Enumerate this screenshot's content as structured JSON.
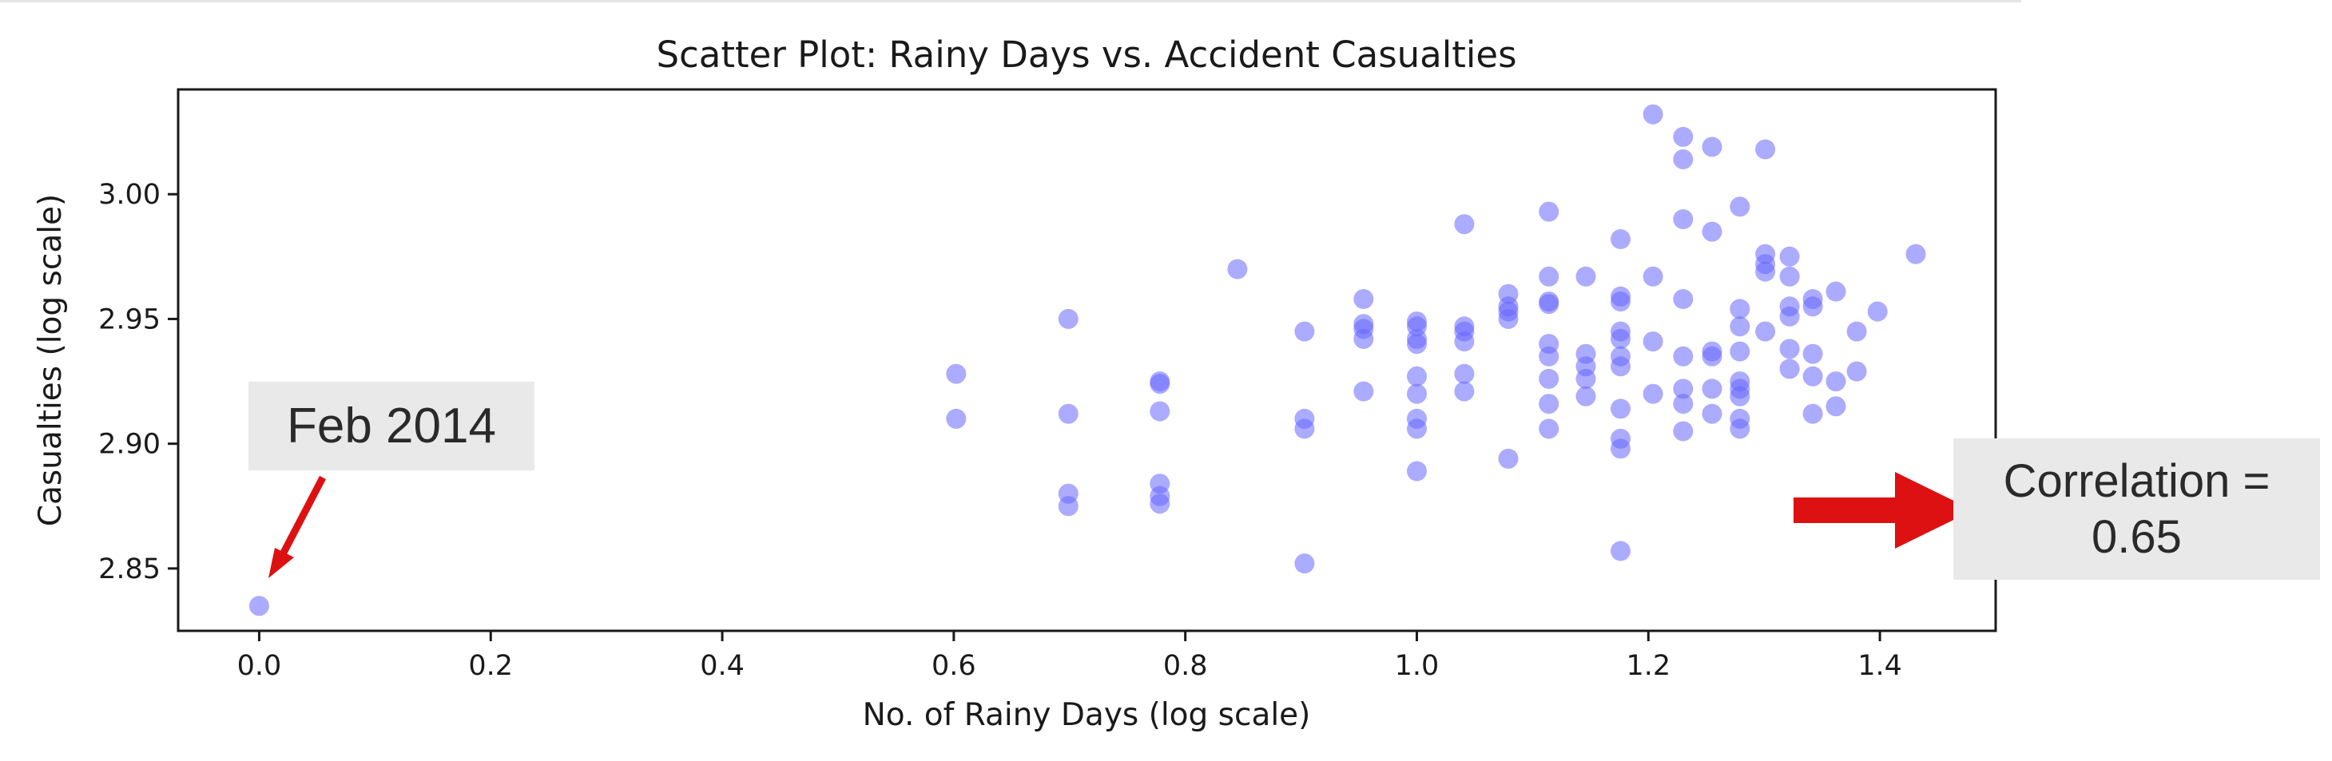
{
  "chart_data": {
    "type": "scatter",
    "title": "Scatter Plot: Rainy Days vs. Accident Casualties",
    "xlabel": "No. of Rainy Days (log scale)",
    "ylabel": "Casualties (log scale)",
    "xlim": [
      -0.07,
      1.5
    ],
    "ylim": [
      2.825,
      3.042
    ],
    "xticks": [
      0.0,
      0.2,
      0.4,
      0.6,
      0.8,
      1.0,
      1.2,
      1.4
    ],
    "xtick_labels": [
      "0.0",
      "0.2",
      "0.4",
      "0.6",
      "0.8",
      "1.0",
      "1.2",
      "1.4"
    ],
    "yticks": [
      2.85,
      2.9,
      2.95,
      3.0
    ],
    "ytick_labels": [
      "2.85",
      "2.90",
      "2.95",
      "3.00"
    ],
    "grid": false,
    "marker_color": "#6666ff",
    "points": [
      {
        "x": 0.0,
        "y": 2.835
      },
      {
        "x": 0.602,
        "y": 2.928
      },
      {
        "x": 0.602,
        "y": 2.91
      },
      {
        "x": 0.699,
        "y": 2.95
      },
      {
        "x": 0.699,
        "y": 2.912
      },
      {
        "x": 0.699,
        "y": 2.88
      },
      {
        "x": 0.699,
        "y": 2.875
      },
      {
        "x": 0.778,
        "y": 2.925
      },
      {
        "x": 0.778,
        "y": 2.924
      },
      {
        "x": 0.778,
        "y": 2.913
      },
      {
        "x": 0.778,
        "y": 2.884
      },
      {
        "x": 0.778,
        "y": 2.879
      },
      {
        "x": 0.778,
        "y": 2.876
      },
      {
        "x": 0.845,
        "y": 2.97
      },
      {
        "x": 0.903,
        "y": 2.945
      },
      {
        "x": 0.903,
        "y": 2.91
      },
      {
        "x": 0.903,
        "y": 2.906
      },
      {
        "x": 0.903,
        "y": 2.852
      },
      {
        "x": 0.954,
        "y": 2.958
      },
      {
        "x": 0.954,
        "y": 2.948
      },
      {
        "x": 0.954,
        "y": 2.946
      },
      {
        "x": 0.954,
        "y": 2.942
      },
      {
        "x": 0.954,
        "y": 2.921
      },
      {
        "x": 1.0,
        "y": 2.949
      },
      {
        "x": 1.0,
        "y": 2.947
      },
      {
        "x": 1.0,
        "y": 2.942
      },
      {
        "x": 1.0,
        "y": 2.94
      },
      {
        "x": 1.0,
        "y": 2.927
      },
      {
        "x": 1.0,
        "y": 2.92
      },
      {
        "x": 1.0,
        "y": 2.91
      },
      {
        "x": 1.0,
        "y": 2.906
      },
      {
        "x": 1.0,
        "y": 2.889
      },
      {
        "x": 1.041,
        "y": 2.988
      },
      {
        "x": 1.041,
        "y": 2.947
      },
      {
        "x": 1.041,
        "y": 2.945
      },
      {
        "x": 1.041,
        "y": 2.941
      },
      {
        "x": 1.041,
        "y": 2.928
      },
      {
        "x": 1.041,
        "y": 2.921
      },
      {
        "x": 1.079,
        "y": 2.96
      },
      {
        "x": 1.079,
        "y": 2.955
      },
      {
        "x": 1.079,
        "y": 2.953
      },
      {
        "x": 1.079,
        "y": 2.95
      },
      {
        "x": 1.079,
        "y": 2.894
      },
      {
        "x": 1.114,
        "y": 2.993
      },
      {
        "x": 1.114,
        "y": 2.967
      },
      {
        "x": 1.114,
        "y": 2.957
      },
      {
        "x": 1.114,
        "y": 2.956
      },
      {
        "x": 1.114,
        "y": 2.94
      },
      {
        "x": 1.114,
        "y": 2.935
      },
      {
        "x": 1.114,
        "y": 2.926
      },
      {
        "x": 1.114,
        "y": 2.916
      },
      {
        "x": 1.114,
        "y": 2.906
      },
      {
        "x": 1.146,
        "y": 2.967
      },
      {
        "x": 1.146,
        "y": 2.936
      },
      {
        "x": 1.146,
        "y": 2.931
      },
      {
        "x": 1.146,
        "y": 2.926
      },
      {
        "x": 1.146,
        "y": 2.919
      },
      {
        "x": 1.176,
        "y": 2.982
      },
      {
        "x": 1.176,
        "y": 2.959
      },
      {
        "x": 1.176,
        "y": 2.957
      },
      {
        "x": 1.176,
        "y": 2.945
      },
      {
        "x": 1.176,
        "y": 2.942
      },
      {
        "x": 1.176,
        "y": 2.935
      },
      {
        "x": 1.176,
        "y": 2.931
      },
      {
        "x": 1.176,
        "y": 2.914
      },
      {
        "x": 1.176,
        "y": 2.902
      },
      {
        "x": 1.176,
        "y": 2.898
      },
      {
        "x": 1.176,
        "y": 2.857
      },
      {
        "x": 1.204,
        "y": 3.032
      },
      {
        "x": 1.204,
        "y": 2.967
      },
      {
        "x": 1.204,
        "y": 2.941
      },
      {
        "x": 1.204,
        "y": 2.92
      },
      {
        "x": 1.23,
        "y": 3.023
      },
      {
        "x": 1.23,
        "y": 3.014
      },
      {
        "x": 1.23,
        "y": 2.99
      },
      {
        "x": 1.23,
        "y": 2.958
      },
      {
        "x": 1.23,
        "y": 2.935
      },
      {
        "x": 1.23,
        "y": 2.922
      },
      {
        "x": 1.23,
        "y": 2.916
      },
      {
        "x": 1.23,
        "y": 2.905
      },
      {
        "x": 1.255,
        "y": 3.019
      },
      {
        "x": 1.255,
        "y": 2.985
      },
      {
        "x": 1.255,
        "y": 2.937
      },
      {
        "x": 1.255,
        "y": 2.935
      },
      {
        "x": 1.255,
        "y": 2.922
      },
      {
        "x": 1.255,
        "y": 2.912
      },
      {
        "x": 1.279,
        "y": 2.995
      },
      {
        "x": 1.279,
        "y": 2.954
      },
      {
        "x": 1.279,
        "y": 2.947
      },
      {
        "x": 1.279,
        "y": 2.937
      },
      {
        "x": 1.279,
        "y": 2.925
      },
      {
        "x": 1.279,
        "y": 2.922
      },
      {
        "x": 1.279,
        "y": 2.919
      },
      {
        "x": 1.279,
        "y": 2.91
      },
      {
        "x": 1.279,
        "y": 2.906
      },
      {
        "x": 1.301,
        "y": 3.018
      },
      {
        "x": 1.301,
        "y": 2.976
      },
      {
        "x": 1.301,
        "y": 2.972
      },
      {
        "x": 1.301,
        "y": 2.969
      },
      {
        "x": 1.301,
        "y": 2.945
      },
      {
        "x": 1.322,
        "y": 2.975
      },
      {
        "x": 1.322,
        "y": 2.967
      },
      {
        "x": 1.322,
        "y": 2.955
      },
      {
        "x": 1.322,
        "y": 2.951
      },
      {
        "x": 1.322,
        "y": 2.938
      },
      {
        "x": 1.322,
        "y": 2.93
      },
      {
        "x": 1.342,
        "y": 2.958
      },
      {
        "x": 1.342,
        "y": 2.955
      },
      {
        "x": 1.342,
        "y": 2.936
      },
      {
        "x": 1.342,
        "y": 2.927
      },
      {
        "x": 1.342,
        "y": 2.912
      },
      {
        "x": 1.362,
        "y": 2.961
      },
      {
        "x": 1.362,
        "y": 2.925
      },
      {
        "x": 1.362,
        "y": 2.915
      },
      {
        "x": 1.38,
        "y": 2.945
      },
      {
        "x": 1.38,
        "y": 2.929
      },
      {
        "x": 1.398,
        "y": 2.953
      },
      {
        "x": 1.431,
        "y": 2.976
      }
    ],
    "annotations": [
      {
        "text": "Feb 2014",
        "x": 0.0,
        "y": 2.835
      },
      {
        "text": "Correlation = 0.65"
      }
    ]
  },
  "annotations": {
    "feb_label": "Feb 2014",
    "corr_line1": "Correlation =",
    "corr_line2": "0.65"
  },
  "colors": {
    "marker": "#6666ff",
    "arrow": "#dd1111",
    "annotation_bg": "#e9e9e9"
  }
}
